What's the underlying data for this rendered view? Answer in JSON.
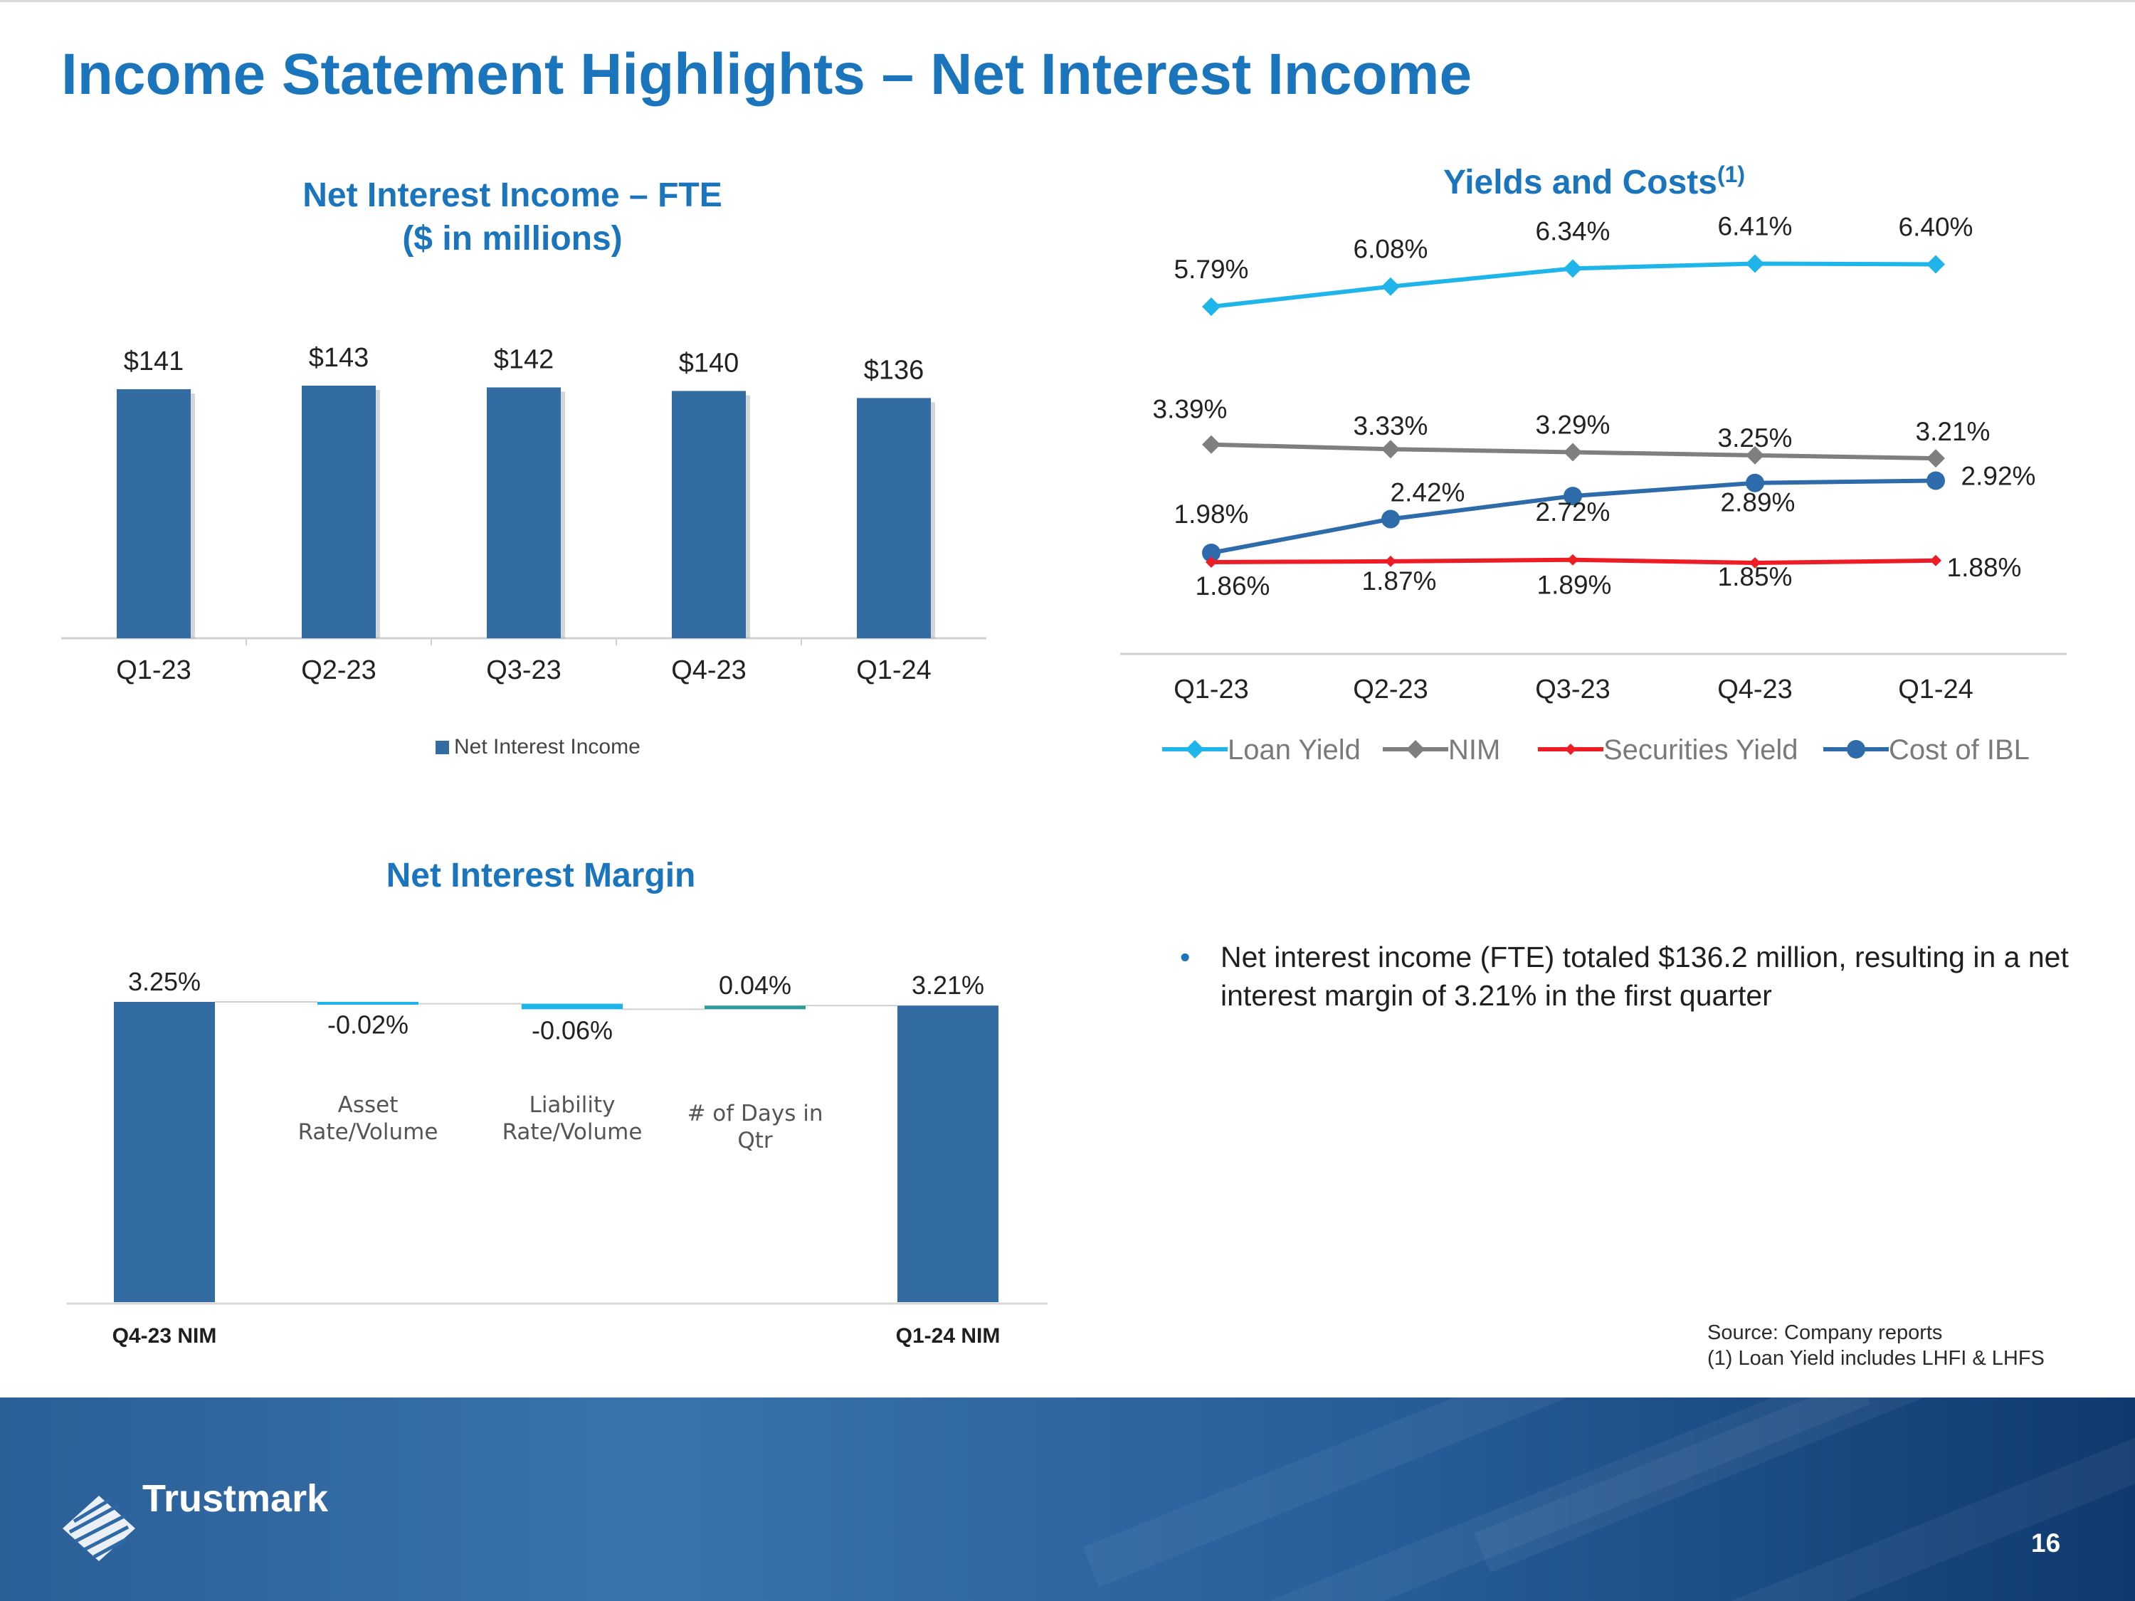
{
  "page": {
    "title": "Income Statement Highlights – Net Interest Income",
    "bullet": "Net interest income (FTE) totaled $136.2 million, resulting in a net interest margin of 3.21% in the first quarter",
    "source_line1": "Source: Company reports",
    "source_line2": "(1) Loan Yield  includes LHFI & LHFS",
    "logo_text": "Trustmark",
    "page_number": "16"
  },
  "colors": {
    "title_blue": "#1a75bc",
    "bar_blue": "#336ba3",
    "loan_yield": "#1fb4ea",
    "nim": "#7f7f7f",
    "securities_yield": "#ee1c25",
    "cost_of_ibl": "#2e6bab"
  },
  "chart_data": [
    {
      "type": "bar",
      "title": "Net Interest Income – FTE",
      "subtitle": "($ in millions)",
      "categories": [
        "Q1-23",
        "Q2-23",
        "Q3-23",
        "Q4-23",
        "Q1-24"
      ],
      "series": [
        {
          "name": "Net Interest Income",
          "values": [
            141,
            143,
            142,
            140,
            136
          ]
        }
      ],
      "data_labels": [
        "$141",
        "$143",
        "$142",
        "$140",
        "$136"
      ],
      "ylim": [
        0,
        143
      ],
      "legend": "bottom",
      "grid": false
    },
    {
      "type": "line",
      "title": "Yields and Costs",
      "title_superscript": "(1)",
      "categories": [
        "Q1-23",
        "Q2-23",
        "Q3-23",
        "Q4-23",
        "Q1-24"
      ],
      "series": [
        {
          "name": "Loan Yield",
          "values": [
            5.79,
            6.08,
            6.34,
            6.41,
            6.4
          ],
          "labels": [
            "5.79%",
            "6.08%",
            "6.34%",
            "6.41%",
            "6.40%"
          ]
        },
        {
          "name": "NIM",
          "values": [
            3.39,
            3.33,
            3.29,
            3.25,
            3.21
          ],
          "labels": [
            "3.39%",
            "3.33%",
            "3.29%",
            "3.25%",
            "3.21%"
          ]
        },
        {
          "name": "Securities Yield",
          "values": [
            1.86,
            1.87,
            1.89,
            1.85,
            1.88
          ],
          "labels": [
            "1.86%",
            "1.87%",
            "1.89%",
            "1.85%",
            "1.88%"
          ]
        },
        {
          "name": "Cost of IBL",
          "values": [
            1.98,
            2.42,
            2.72,
            2.89,
            2.92
          ],
          "labels": [
            "1.98%",
            "2.42%",
            "2.72%",
            "2.89%",
            "2.92%"
          ]
        }
      ],
      "legend": "bottom",
      "grid": false
    },
    {
      "type": "bar",
      "subtype": "waterfall",
      "title": "Net Interest Margin",
      "steps": [
        {
          "label": "Q4-23 NIM",
          "value": 3.25,
          "kind": "total",
          "value_label": "3.25%"
        },
        {
          "label": "Asset Rate/Volume",
          "value": -0.02,
          "kind": "delta",
          "value_label": "-0.02%"
        },
        {
          "label": "Liability Rate/Volume",
          "value": -0.06,
          "kind": "delta",
          "value_label": "-0.06%"
        },
        {
          "label": "# of Days in Qtr",
          "value": 0.04,
          "kind": "delta",
          "value_label": "0.04%"
        },
        {
          "label": "Q1-24 NIM",
          "value": 3.21,
          "kind": "total",
          "value_label": "3.21%"
        }
      ]
    }
  ]
}
